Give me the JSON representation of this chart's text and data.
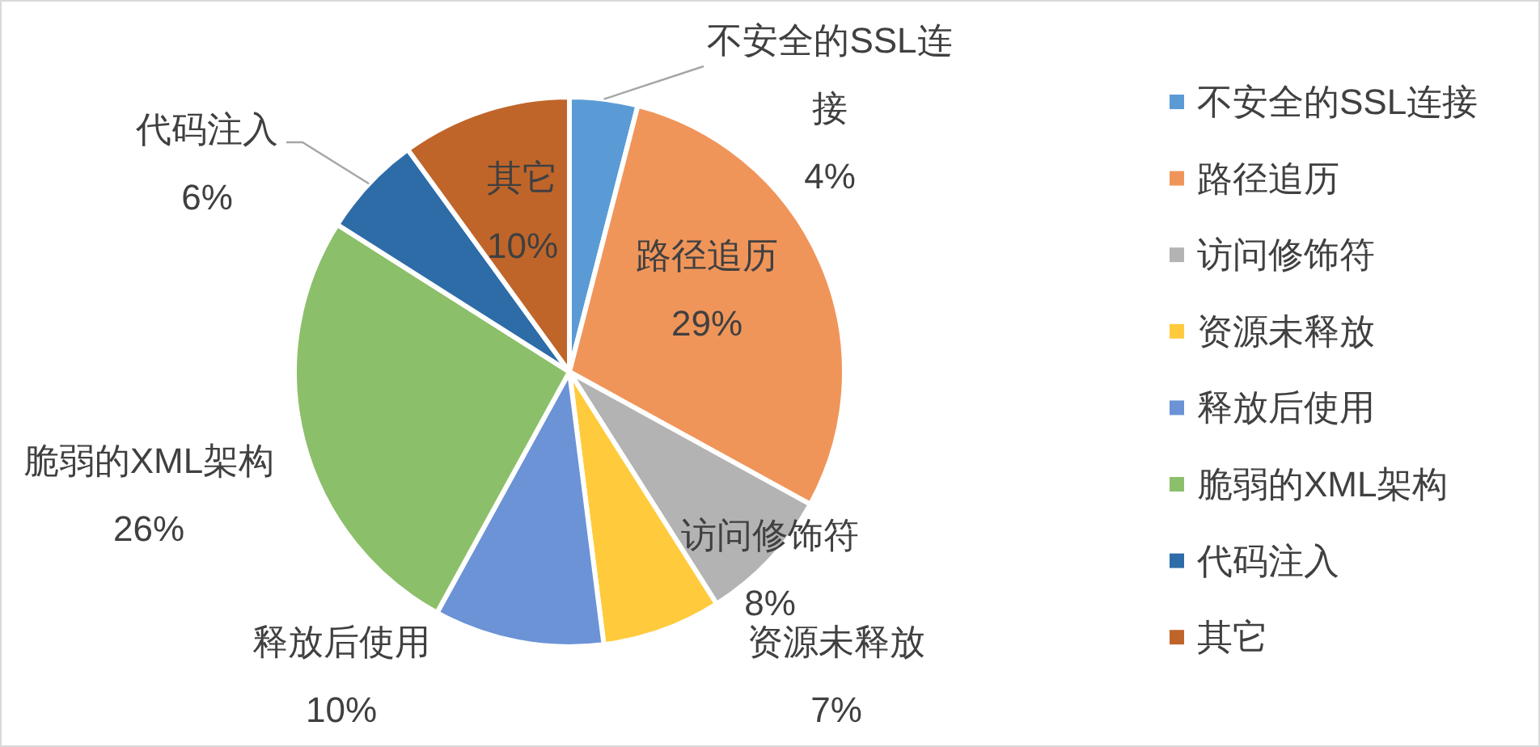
{
  "chart_data": {
    "type": "pie",
    "categories": [
      "不安全的SSL连接",
      "路径追历",
      "访问修饰符",
      "资源未释放",
      "释放后使用",
      "脆弱的XML架构",
      "代码注入",
      "其它"
    ],
    "values": [
      4,
      29,
      8,
      7,
      10,
      26,
      6,
      10
    ],
    "colors": [
      "#5b9bd5",
      "#f0955a",
      "#b3b3b3",
      "#ffcb3d",
      "#6b93d6",
      "#8cbf6a",
      "#2e6ca8",
      "#c0652a"
    ],
    "value_labels": [
      "4%",
      "29%",
      "8%",
      "7%",
      "10%",
      "26%",
      "6%",
      "10%"
    ],
    "legend": "right"
  }
}
